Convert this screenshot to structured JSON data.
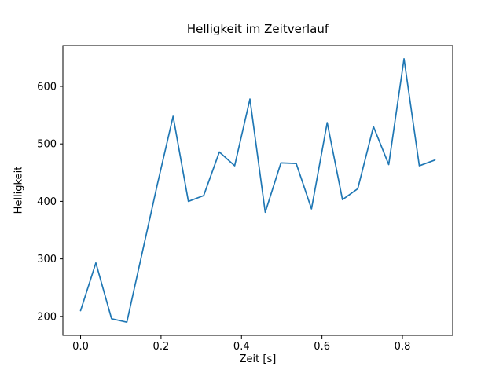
{
  "figure": {
    "background": "#ffffff"
  },
  "chart_data": {
    "type": "line",
    "title": "Helligkeit im Zeitverlauf",
    "xlabel": "Zeit [s]",
    "ylabel": "Helligkeit",
    "x": [
      0.0,
      0.038,
      0.077,
      0.115,
      0.153,
      0.191,
      0.23,
      0.268,
      0.306,
      0.345,
      0.383,
      0.421,
      0.459,
      0.498,
      0.536,
      0.574,
      0.613,
      0.651,
      0.689,
      0.728,
      0.766,
      0.804,
      0.842,
      0.881
    ],
    "y": [
      210,
      293,
      196,
      190,
      310,
      430,
      548,
      400,
      410,
      486,
      462,
      578,
      381,
      467,
      466,
      387,
      537,
      403,
      422,
      530,
      464,
      648,
      462,
      472
    ],
    "xlim": [
      -0.044,
      0.925
    ],
    "ylim": [
      167,
      671
    ],
    "xticks": [
      0.0,
      0.2,
      0.4,
      0.6,
      0.8
    ],
    "xtick_labels": [
      "0.0",
      "0.2",
      "0.4",
      "0.6",
      "0.8"
    ],
    "yticks": [
      200,
      300,
      400,
      500,
      600
    ],
    "ytick_labels": [
      "200",
      "300",
      "400",
      "500",
      "600"
    ],
    "line_color": "#1f77b4",
    "axis_color": "#000000",
    "grid": false
  }
}
